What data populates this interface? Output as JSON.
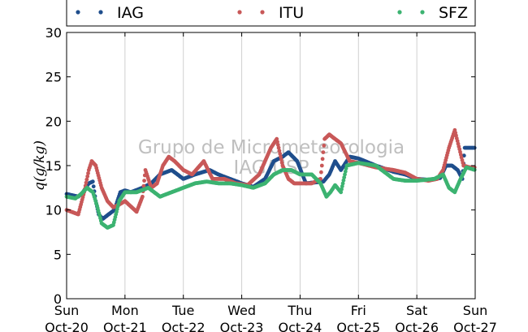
{
  "chart_data": {
    "type": "scatter",
    "title": "",
    "ylabel": "q(g/kg)",
    "xlabel": "",
    "ylim": [
      0,
      30
    ],
    "xlim": [
      0,
      7
    ],
    "grid": "vertical",
    "legend_position": "top",
    "yticks": [
      0,
      5,
      10,
      15,
      20,
      25,
      30
    ],
    "xticks": [
      {
        "value": 0,
        "day": "Sun",
        "date": "Oct-20"
      },
      {
        "value": 1,
        "day": "Mon",
        "date": "Oct-21"
      },
      {
        "value": 2,
        "day": "Tue",
        "date": "Oct-22"
      },
      {
        "value": 3,
        "day": "Wed",
        "date": "Oct-23"
      },
      {
        "value": 4,
        "day": "Thu",
        "date": "Oct-24"
      },
      {
        "value": 5,
        "day": "Fri",
        "date": "Oct-25"
      },
      {
        "value": 6,
        "day": "Sat",
        "date": "Oct-26"
      },
      {
        "value": 7,
        "day": "Sun",
        "date": "Oct-27"
      }
    ],
    "watermark": [
      "Grupo de Micrometeorologia",
      "IAG/USP"
    ],
    "series": [
      {
        "name": "IAG",
        "color": "#1f4e8c",
        "x": [
          0.0,
          0.2,
          0.28,
          0.38,
          0.45,
          0.5,
          0.55,
          0.62,
          0.72,
          0.82,
          0.92,
          1.0,
          1.1,
          1.3,
          1.45,
          1.6,
          1.8,
          2.0,
          2.2,
          2.45,
          2.6,
          2.8,
          3.0,
          3.2,
          3.4,
          3.55,
          3.7,
          3.8,
          3.95,
          4.1,
          4.25,
          4.4,
          4.5,
          4.6,
          4.7,
          4.85,
          5.0,
          5.3,
          5.6,
          5.8,
          6.0,
          6.2,
          6.4,
          6.5,
          6.6,
          6.7,
          6.78,
          6.82,
          6.9,
          7.0
        ],
        "y": [
          11.8,
          11.5,
          12.0,
          13.0,
          13.2,
          11.0,
          9.5,
          9.0,
          9.5,
          10.0,
          12.0,
          12.2,
          12.0,
          12.5,
          13.0,
          14.0,
          14.5,
          13.5,
          14.0,
          14.5,
          14.0,
          13.5,
          13.0,
          12.6,
          13.5,
          15.5,
          16.0,
          16.5,
          15.5,
          13.0,
          13.1,
          13.2,
          14.0,
          15.5,
          14.5,
          16.0,
          15.8,
          15.0,
          14.3,
          14.0,
          13.5,
          13.4,
          13.6,
          15.0,
          15.0,
          14.5,
          13.5,
          17.0,
          17.0,
          17.0
        ]
      },
      {
        "name": "ITU",
        "color": "#c85858",
        "x": [
          0.0,
          0.2,
          0.3,
          0.38,
          0.43,
          0.5,
          0.6,
          0.7,
          0.8,
          0.9,
          1.0,
          1.2,
          1.3,
          1.35,
          1.45,
          1.55,
          1.65,
          1.75,
          1.85,
          2.0,
          2.15,
          2.35,
          2.5,
          2.7,
          2.9,
          3.1,
          3.3,
          3.5,
          3.6,
          3.7,
          3.8,
          3.9,
          4.0,
          4.2,
          4.35,
          4.42,
          4.5,
          4.6,
          4.7,
          4.85,
          5.0,
          5.3,
          5.6,
          5.8,
          6.0,
          6.2,
          6.35,
          6.45,
          6.55,
          6.65,
          6.8,
          6.9,
          7.0
        ],
        "y": [
          10.0,
          9.5,
          12.0,
          14.5,
          15.5,
          15.0,
          12.5,
          11.0,
          10.3,
          10.6,
          11.0,
          9.8,
          11.5,
          14.5,
          12.5,
          13.0,
          15.0,
          16.0,
          15.5,
          14.5,
          14.0,
          15.5,
          13.5,
          13.5,
          13.0,
          12.8,
          14.0,
          17.0,
          18.0,
          15.0,
          13.5,
          13.0,
          13.0,
          13.0,
          13.5,
          18.0,
          18.5,
          18.0,
          17.5,
          15.5,
          15.3,
          14.8,
          14.5,
          14.2,
          13.5,
          13.3,
          13.5,
          14.5,
          17.0,
          19.0,
          15.0,
          14.8,
          14.8
        ]
      },
      {
        "name": "SFZ",
        "color": "#3cb371",
        "x": [
          0.0,
          0.15,
          0.25,
          0.35,
          0.45,
          0.52,
          0.6,
          0.7,
          0.8,
          0.9,
          1.0,
          1.2,
          1.4,
          1.6,
          1.8,
          2.0,
          2.2,
          2.4,
          2.6,
          2.8,
          3.0,
          3.2,
          3.4,
          3.55,
          3.7,
          3.85,
          4.0,
          4.2,
          4.35,
          4.45,
          4.52,
          4.6,
          4.7,
          4.8,
          5.0,
          5.3,
          5.6,
          5.8,
          6.0,
          6.3,
          6.45,
          6.55,
          6.65,
          6.75,
          6.85,
          7.0
        ],
        "y": [
          11.5,
          11.3,
          11.8,
          12.5,
          12.0,
          10.5,
          8.5,
          8.0,
          8.3,
          11.0,
          12.0,
          12.0,
          12.5,
          11.5,
          12.0,
          12.5,
          13.0,
          13.2,
          13.0,
          13.0,
          12.8,
          12.5,
          13.0,
          14.0,
          14.5,
          14.5,
          14.0,
          14.0,
          13.0,
          11.5,
          12.0,
          12.8,
          12.0,
          15.0,
          15.3,
          15.0,
          13.5,
          13.3,
          13.3,
          13.5,
          14.0,
          12.5,
          12.0,
          13.5,
          14.8,
          14.5
        ]
      }
    ]
  }
}
